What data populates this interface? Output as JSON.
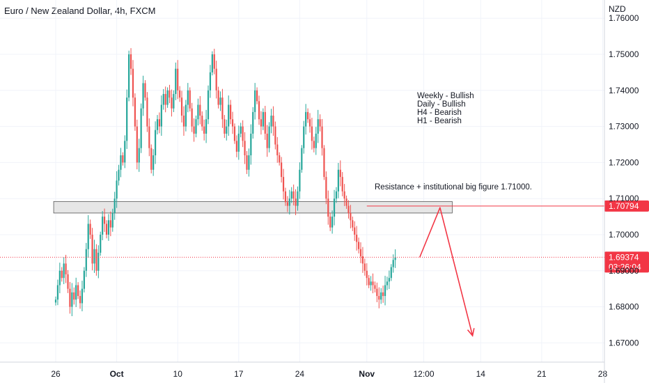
{
  "header": {
    "symbol_title": "Euro / New Zealand Dollar, 4h, FXCM",
    "currency": "NZD"
  },
  "chart_data": {
    "type": "candlestick",
    "y_ticks": [
      "1.76000",
      "1.75000",
      "1.74000",
      "1.73000",
      "1.72000",
      "1.71000",
      "1.70000",
      "1.69000",
      "1.68000",
      "1.67000"
    ],
    "y_tick_values": [
      1.76,
      1.75,
      1.74,
      1.73,
      1.72,
      1.71,
      1.7,
      1.69,
      1.68,
      1.67
    ],
    "x_ticks": [
      {
        "label": "26",
        "bold": false,
        "bar": 0
      },
      {
        "label": "Oct",
        "bold": true,
        "bar": 30
      },
      {
        "label": "10",
        "bold": false,
        "bar": 60
      },
      {
        "label": "17",
        "bold": false,
        "bar": 90
      },
      {
        "label": "24",
        "bold": false,
        "bar": 120
      },
      {
        "label": "Nov",
        "bold": true,
        "bar": 153
      },
      {
        "label": "12:00",
        "bold": false,
        "bar": 181
      },
      {
        "label": "14",
        "bold": false,
        "bar": 209
      },
      {
        "label": "21",
        "bold": false,
        "bar": 239
      },
      {
        "label": "28",
        "bold": false,
        "bar": 269
      }
    ],
    "colors": {
      "up": "#26a69a",
      "down": "#ef5350",
      "zone_fill": "#e6e6e6",
      "zone_border": "#555555",
      "arrow": "#f23645",
      "grid": "#f0f3fa"
    },
    "resistance_zone": {
      "low": 1.706,
      "high": 1.7092,
      "start_bar": -1,
      "end_bar": 195
    },
    "resistance_line": {
      "price": 1.70794,
      "start_bar": 153,
      "label": "1.70794",
      "color": "#f23645"
    },
    "last_price": {
      "price": 1.69374,
      "label": "1.69374",
      "countdown": "03:26:04",
      "color": "#f23645"
    },
    "projection": [
      {
        "bar": 179,
        "price": 1.6937
      },
      {
        "bar": 189,
        "price": 1.7075
      },
      {
        "bar": 205,
        "price": 1.672
      }
    ],
    "annotations": {
      "bias_lines": [
        "Weekly - Bullish",
        "Daily - Bullish",
        "H4 - Bearish",
        "H1 - Bearish"
      ],
      "resistance_note": "Resistance + institutional big figure 1.71000."
    },
    "closes": [
      1.682,
      1.686,
      1.69,
      1.688,
      1.692,
      1.689,
      1.685,
      1.68,
      1.684,
      1.682,
      1.686,
      1.683,
      1.681,
      1.685,
      1.69,
      1.696,
      1.703,
      1.7,
      1.692,
      1.696,
      1.69,
      1.695,
      1.7,
      1.705,
      1.703,
      1.7,
      1.704,
      1.702,
      1.706,
      1.71,
      1.715,
      1.718,
      1.722,
      1.72,
      1.726,
      1.738,
      1.75,
      1.746,
      1.738,
      1.73,
      1.72,
      1.724,
      1.735,
      1.742,
      1.738,
      1.73,
      1.724,
      1.718,
      1.722,
      1.729,
      1.732,
      1.73,
      1.736,
      1.739,
      1.736,
      1.74,
      1.738,
      1.735,
      1.739,
      1.746,
      1.74,
      1.738,
      1.733,
      1.73,
      1.736,
      1.74,
      1.735,
      1.73,
      1.728,
      1.732,
      1.736,
      1.733,
      1.73,
      1.728,
      1.732,
      1.74,
      1.745,
      1.75,
      1.746,
      1.74,
      1.736,
      1.738,
      1.732,
      1.728,
      1.73,
      1.736,
      1.732,
      1.73,
      1.726,
      1.723,
      1.728,
      1.73,
      1.726,
      1.722,
      1.718,
      1.722,
      1.728,
      1.734,
      1.74,
      1.737,
      1.732,
      1.73,
      1.734,
      1.728,
      1.724,
      1.73,
      1.733,
      1.73,
      1.725,
      1.722,
      1.72,
      1.716,
      1.712,
      1.709,
      1.708,
      1.71,
      1.712,
      1.71,
      1.708,
      1.712,
      1.718,
      1.724,
      1.73,
      1.734,
      1.732,
      1.73,
      1.726,
      1.724,
      1.728,
      1.732,
      1.73,
      1.724,
      1.716,
      1.71,
      1.705,
      1.702,
      1.705,
      1.71,
      1.712,
      1.718,
      1.716,
      1.712,
      1.71,
      1.708,
      1.706,
      1.704,
      1.702,
      1.7,
      1.698,
      1.696,
      1.694,
      1.692,
      1.69,
      1.688,
      1.686,
      1.687,
      1.686,
      1.685,
      1.683,
      1.682,
      1.684,
      1.683,
      1.686,
      1.687,
      1.688,
      1.691,
      1.693,
      1.6937
    ]
  }
}
